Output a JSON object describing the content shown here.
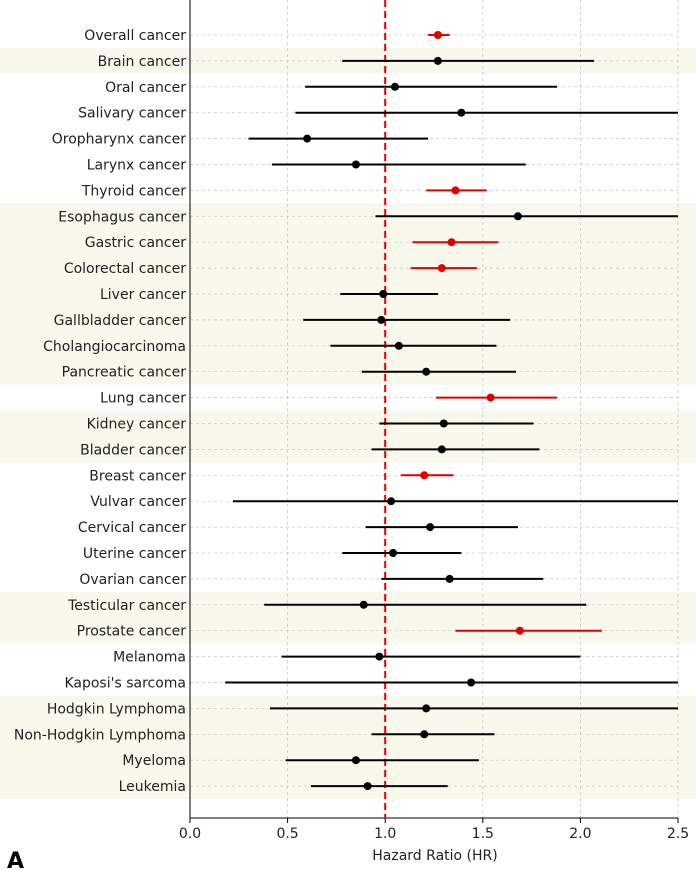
{
  "chart_data": {
    "type": "forest",
    "panel_label": "A",
    "xlabel": "Hazard Ratio (HR)",
    "xlim": [
      0.0,
      2.5
    ],
    "xticks": [
      "0.0",
      "0.5",
      "1.0",
      "1.5",
      "2.0",
      "2.5"
    ],
    "reference_line": 1.0,
    "grid": true,
    "colors": {
      "significant": "#e00000",
      "non_significant": "#000000",
      "band": "#f8f8ec",
      "grid": "#c8c8c8",
      "reference": "#e00000"
    },
    "rows": [
      {
        "label": "Overall cancer",
        "hr": 1.27,
        "lo": 1.22,
        "hi": 1.33,
        "significant": true
      },
      {
        "label": "Brain cancer",
        "hr": 1.27,
        "lo": 0.78,
        "hi": 2.07,
        "significant": false
      },
      {
        "label": "Oral cancer",
        "hr": 1.05,
        "lo": 0.59,
        "hi": 1.88,
        "significant": false
      },
      {
        "label": "Salivary cancer",
        "hr": 1.39,
        "lo": 0.54,
        "hi": 2.5,
        "significant": false
      },
      {
        "label": "Oropharynx cancer",
        "hr": 0.6,
        "lo": 0.3,
        "hi": 1.22,
        "significant": false
      },
      {
        "label": "Larynx cancer",
        "hr": 0.85,
        "lo": 0.42,
        "hi": 1.72,
        "significant": false
      },
      {
        "label": "Thyroid cancer",
        "hr": 1.36,
        "lo": 1.21,
        "hi": 1.52,
        "significant": true
      },
      {
        "label": "Esophagus cancer",
        "hr": 1.68,
        "lo": 0.95,
        "hi": 2.5,
        "significant": false
      },
      {
        "label": "Gastric cancer",
        "hr": 1.34,
        "lo": 1.14,
        "hi": 1.58,
        "significant": true
      },
      {
        "label": "Colorectal cancer",
        "hr": 1.29,
        "lo": 1.13,
        "hi": 1.47,
        "significant": true
      },
      {
        "label": "Liver cancer",
        "hr": 0.99,
        "lo": 0.77,
        "hi": 1.27,
        "significant": false
      },
      {
        "label": "Gallbladder cancer",
        "hr": 0.98,
        "lo": 0.58,
        "hi": 1.64,
        "significant": false
      },
      {
        "label": "Cholangiocarcinoma",
        "hr": 1.07,
        "lo": 0.72,
        "hi": 1.57,
        "significant": false
      },
      {
        "label": "Pancreatic cancer",
        "hr": 1.21,
        "lo": 0.88,
        "hi": 1.67,
        "significant": false
      },
      {
        "label": "Lung cancer",
        "hr": 1.54,
        "lo": 1.26,
        "hi": 1.88,
        "significant": true
      },
      {
        "label": "Kidney cancer",
        "hr": 1.3,
        "lo": 0.97,
        "hi": 1.76,
        "significant": false
      },
      {
        "label": "Bladder cancer",
        "hr": 1.29,
        "lo": 0.93,
        "hi": 1.79,
        "significant": false
      },
      {
        "label": "Breast cancer",
        "hr": 1.2,
        "lo": 1.08,
        "hi": 1.35,
        "significant": true
      },
      {
        "label": "Vulvar cancer",
        "hr": 1.03,
        "lo": 0.22,
        "hi": 2.5,
        "significant": false
      },
      {
        "label": "Cervical cancer",
        "hr": 1.23,
        "lo": 0.9,
        "hi": 1.68,
        "significant": false
      },
      {
        "label": "Uterine cancer",
        "hr": 1.04,
        "lo": 0.78,
        "hi": 1.39,
        "significant": false
      },
      {
        "label": "Ovarian cancer",
        "hr": 1.33,
        "lo": 0.98,
        "hi": 1.81,
        "significant": false
      },
      {
        "label": "Testicular cancer",
        "hr": 0.89,
        "lo": 0.38,
        "hi": 2.03,
        "significant": false
      },
      {
        "label": "Prostate cancer",
        "hr": 1.69,
        "lo": 1.36,
        "hi": 2.11,
        "significant": true
      },
      {
        "label": "Melanoma",
        "hr": 0.97,
        "lo": 0.47,
        "hi": 2.0,
        "significant": false
      },
      {
        "label": "Kaposi's sarcoma",
        "hr": 1.44,
        "lo": 0.18,
        "hi": 2.5,
        "significant": false
      },
      {
        "label": "Hodgkin Lymphoma",
        "hr": 1.21,
        "lo": 0.41,
        "hi": 2.5,
        "significant": false
      },
      {
        "label": "Non-Hodgkin Lymphoma",
        "hr": 1.2,
        "lo": 0.93,
        "hi": 1.56,
        "significant": false
      },
      {
        "label": "Myeloma",
        "hr": 0.85,
        "lo": 0.49,
        "hi": 1.48,
        "significant": false
      },
      {
        "label": "Leukemia",
        "hr": 0.91,
        "lo": 0.62,
        "hi": 1.32,
        "significant": false
      }
    ],
    "bands": [
      [
        1,
        1
      ],
      [
        7,
        13
      ],
      [
        15,
        16
      ],
      [
        22,
        23
      ],
      [
        26,
        29
      ]
    ]
  }
}
